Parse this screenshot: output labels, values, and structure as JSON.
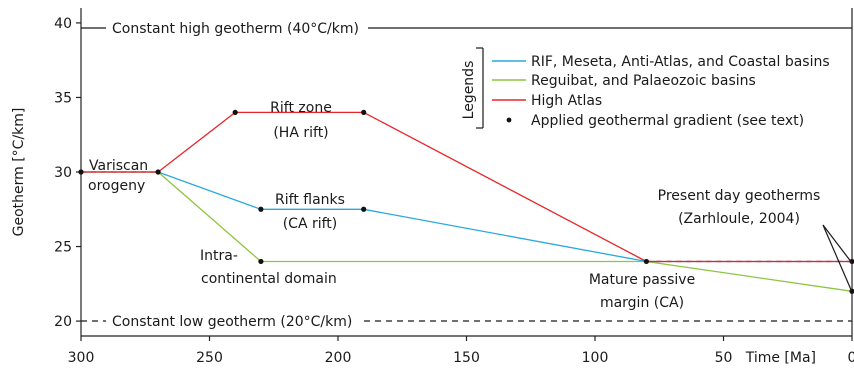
{
  "chart_data": {
    "type": "line",
    "xlabel": "Time [Ma]",
    "ylabel": "Geotherm [°C/km]",
    "xlim": [
      300,
      0
    ],
    "ylim": [
      19,
      41
    ],
    "xticks": [
      300,
      250,
      200,
      150,
      100,
      50,
      0
    ],
    "xtick_labels": [
      "300",
      "250",
      "200",
      "150",
      "100",
      "50",
      "0"
    ],
    "yticks": [
      20,
      25,
      30,
      35,
      40
    ],
    "ytick_labels": [
      "20",
      "25",
      "30",
      "35",
      "40"
    ],
    "legend_title": "Legends",
    "series": [
      {
        "name": "RIF, Meseta, Anti-Atlas, and Coastal basins",
        "color": "#29a8e0",
        "x": [
          300,
          270,
          230,
          190,
          80,
          0
        ],
        "y": [
          30,
          30,
          27.5,
          27.5,
          24,
          24
        ]
      },
      {
        "name": "Reguibat, and Palaeozoic basins",
        "color": "#8cc63f",
        "x": [
          300,
          270,
          230,
          80,
          0
        ],
        "y": [
          30,
          30,
          24,
          24,
          22
        ]
      },
      {
        "name": "High Atlas",
        "color": "#e8262a",
        "x": [
          300,
          270,
          240,
          190,
          80,
          0
        ],
        "y": [
          30,
          30,
          34,
          34,
          24,
          24
        ]
      }
    ],
    "constant_lines": [
      {
        "label": "Constant high geotherm (40°C/km)",
        "y": 40,
        "style": "solid"
      },
      {
        "label": "Constant low geotherm (20°C/km)",
        "y": 20,
        "style": "dashed"
      }
    ],
    "points": {
      "name": "Applied geothermal gradient (see text)",
      "x": [
        300,
        270,
        240,
        190,
        230,
        190,
        230,
        80,
        0,
        0
      ],
      "y": [
        30,
        30,
        34,
        34,
        27.5,
        27.5,
        24,
        24,
        24,
        22
      ]
    },
    "annotations": {
      "variscan": [
        "Variscan",
        "orogeny"
      ],
      "rift_zone": [
        "Rift zone",
        "(HA rift)"
      ],
      "rift_flanks": [
        "Rift flanks",
        "(CA rift)"
      ],
      "intra": [
        "Intra-",
        "continental domain"
      ],
      "mature": [
        "Mature passive",
        "margin (CA)"
      ],
      "present": [
        "Present day geotherms",
        "(Zarhloule, 2004)"
      ]
    }
  }
}
